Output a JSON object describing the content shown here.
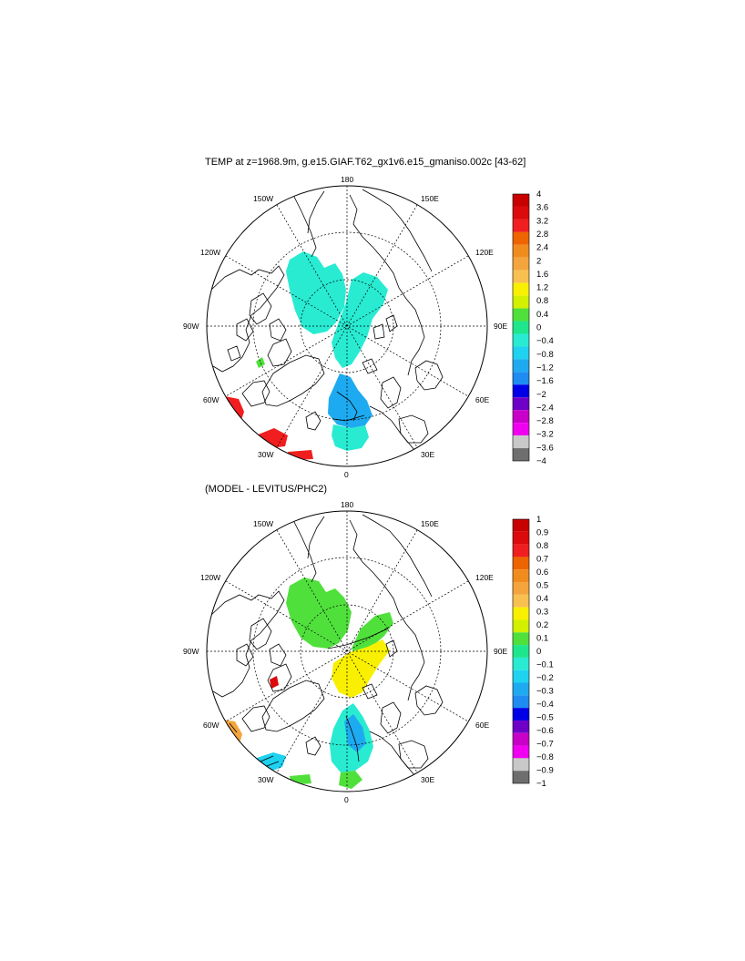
{
  "panels": [
    {
      "id": "top",
      "title": "TEMP at z=1968.9m, g.e15.GIAF.T62_gx1v6.e15_gmaniso.002c [43-62]",
      "lon_labels": [
        "180",
        "150E",
        "120E",
        "90E",
        "60E",
        "30E",
        "0",
        "30W",
        "60W",
        "90W",
        "120W",
        "150W"
      ],
      "colorbar": {
        "labels": [
          "4",
          "3.6",
          "3.2",
          "2.8",
          "2.4",
          "2",
          "1.6",
          "1.2",
          "0.8",
          "0.4",
          "0",
          "−0.4",
          "−0.8",
          "−1.2",
          "−1.6",
          "−2",
          "−2.4",
          "−2.8",
          "−3.2",
          "−3.6",
          "−4"
        ],
        "colors": [
          "#c80000",
          "#dc0a0a",
          "#f01e1e",
          "#ee6400",
          "#f08c1e",
          "#f4a43c",
          "#f8c050",
          "#f8f000",
          "#d2f000",
          "#50e03c",
          "#1ee68c",
          "#28ebd2",
          "#1ed2f0",
          "#1eaaf0",
          "#1e8cf0",
          "#0000e6",
          "#6e00c8",
          "#c800c8",
          "#f000f0",
          "#c8c8c8",
          "#6e6e6e"
        ]
      }
    },
    {
      "id": "bottom",
      "title": "(MODEL - LEVITUS/PHC2)",
      "lon_labels": [
        "180",
        "150E",
        "120E",
        "90E",
        "60E",
        "30E",
        "0",
        "30W",
        "60W",
        "90W",
        "120W",
        "150W"
      ],
      "colorbar": {
        "labels": [
          "1",
          "0.9",
          "0.8",
          "0.7",
          "0.6",
          "0.5",
          "0.4",
          "0.3",
          "0.2",
          "0.1",
          "0",
          "−0.1",
          "−0.2",
          "−0.3",
          "−0.4",
          "−0.5",
          "−0.6",
          "−0.7",
          "−0.8",
          "−0.9",
          "−1"
        ],
        "colors": [
          "#c80000",
          "#dc0a0a",
          "#f01e1e",
          "#ee6400",
          "#f08c1e",
          "#f4a43c",
          "#f8c050",
          "#f8f000",
          "#d2f000",
          "#50e03c",
          "#1ee68c",
          "#28ebd2",
          "#1ed2f0",
          "#1eaaf0",
          "#1e8cf0",
          "#0000e6",
          "#6e00c8",
          "#c800c8",
          "#f000f0",
          "#c8c8c8",
          "#6e6e6e"
        ]
      }
    }
  ]
}
